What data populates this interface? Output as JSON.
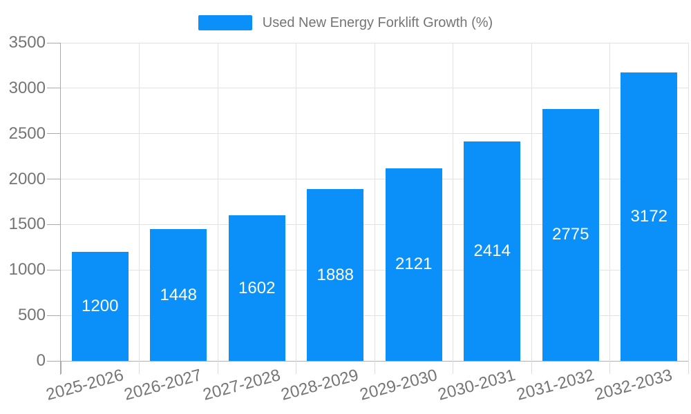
{
  "chart_data": {
    "type": "bar",
    "title": "",
    "legend": {
      "label": "Used New Energy Forklift Growth (%)",
      "position": "top-center"
    },
    "categories": [
      "2025-2026",
      "2026-2027",
      "2027-2028",
      "2028-2029",
      "2029-2030",
      "2030-2031",
      "2031-2032",
      "2032-2033"
    ],
    "series": [
      {
        "name": "Used New Energy Forklift Growth (%)",
        "values": [
          1200,
          1448,
          1602,
          1888,
          2121,
          2414,
          2775,
          3172
        ],
        "color": "#0b90f9"
      }
    ],
    "xlabel": "",
    "ylabel": "",
    "ylim": [
      0,
      3500
    ],
    "yticks": [
      0,
      500,
      1000,
      1500,
      2000,
      2500,
      3000,
      3500
    ],
    "grid": true,
    "gridlines": "horizontal and vertical, light gray, ticks at category boundaries",
    "bar_value_labels": "white, centered inside bars",
    "x_label_rotation_deg": 15
  },
  "colors": {
    "bar": "#0b90f9",
    "gridline": "#e2e2e2",
    "axis_line": "#b0b0b0",
    "tick": "#aaaaaa",
    "tick_light": "#dcdcdc",
    "label_text": "#757575",
    "bar_label_text": "#ffffff",
    "background": "#ffffff"
  }
}
